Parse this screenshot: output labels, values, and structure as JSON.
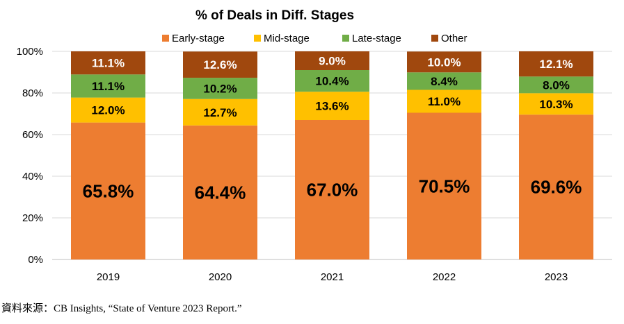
{
  "chart_data": {
    "type": "bar",
    "stacked": true,
    "title": "% of Deals in Diff. Stages",
    "categories": [
      "2019",
      "2020",
      "2021",
      "2022",
      "2023"
    ],
    "yticks": [
      "0%",
      "20%",
      "40%",
      "60%",
      "80%",
      "100%"
    ],
    "ylim": [
      0,
      100
    ],
    "grid": true,
    "legend_position": "top",
    "series": [
      {
        "name": "Early-stage",
        "color": "#ED7D31",
        "values": [
          65.8,
          64.4,
          67.0,
          70.5,
          69.6
        ],
        "labels": [
          "65.8%",
          "64.4%",
          "67.0%",
          "70.5%",
          "69.6%"
        ],
        "label_color": "#000000"
      },
      {
        "name": "Mid-stage",
        "color": "#FFC000",
        "values": [
          12.0,
          12.7,
          13.6,
          11.0,
          10.3
        ],
        "labels": [
          "12.0%",
          "12.7%",
          "13.6%",
          "11.0%",
          "10.3%"
        ],
        "label_color": "#000000"
      },
      {
        "name": "Late-stage",
        "color": "#70AD47",
        "values": [
          11.1,
          10.2,
          10.4,
          8.4,
          8.0
        ],
        "labels": [
          "11.1%",
          "10.2%",
          "10.4%",
          "8.4%",
          "8.0%"
        ],
        "label_color": "#000000"
      },
      {
        "name": "Other",
        "color": "#A0480E",
        "values": [
          11.1,
          12.6,
          9.0,
          10.0,
          12.1
        ],
        "labels": [
          "11.1%",
          "12.6%",
          "9.0%",
          "10.0%",
          "12.1%"
        ],
        "label_color": "#FFFFFF"
      }
    ]
  },
  "source": "資料來源：CB Insights, “State of Venture 2023 Report.”"
}
